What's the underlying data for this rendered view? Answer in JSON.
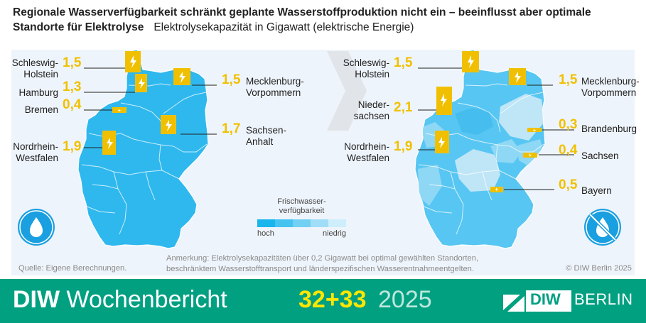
{
  "header": {
    "title": "Regionale Wasserverfügbarkeit schränkt geplante Wasserstoffproduktion nicht ein – beeinflusst aber optimale",
    "title_line2": "Standorte für Elektrolyse",
    "subtitle": "Elektrolysekapazität in Gigawatt (elektrische Energie)"
  },
  "chart_data": [
    {
      "type": "map",
      "unit": "Gigawatt",
      "icon": "water-drop-icon",
      "regions": [
        {
          "name": "Schleswig-\nHolstein",
          "value": "1,5"
        },
        {
          "name": "Hamburg",
          "value": "1,3"
        },
        {
          "name": "Bremen",
          "value": "0,4"
        },
        {
          "name": "Nordrhein-\nWestfalen",
          "value": "1,9"
        },
        {
          "name": "Mecklenburg-\nVorpommern",
          "value": "1,5"
        },
        {
          "name": "Sachsen-\nAnhalt",
          "value": "1,7"
        }
      ]
    },
    {
      "type": "map",
      "unit": "Gigawatt",
      "icon": "no-water-icon",
      "regions": [
        {
          "name": "Schleswig-\nHolstein",
          "value": "1,5"
        },
        {
          "name": "Nieder-\nsachsen",
          "value": "2,1"
        },
        {
          "name": "Nordrhein-\nWestfalen",
          "value": "1,9"
        },
        {
          "name": "Mecklenburg-\nVorpommern",
          "value": "1,5"
        },
        {
          "name": "Brandenburg",
          "value": "0,3"
        },
        {
          "name": "Sachsen",
          "value": "0,4"
        },
        {
          "name": "Bayern",
          "value": "0,5"
        }
      ]
    }
  ],
  "legend": {
    "title": "Frischwasser-\nverfügbarkeit",
    "low_label": "hoch",
    "high_label": "niedrig",
    "colors": [
      "#19b6ee",
      "#46c3f0",
      "#72d0f3",
      "#9fdef6",
      "#cdeefa"
    ]
  },
  "colors": {
    "accent": "#f0c000",
    "map_dark": "#29b9ef",
    "map_light": "#bfe6f7",
    "footer": "#00a081"
  },
  "note": "Anmerkung: Elektrolysekapazitäten über 0,2 Gigawatt bei optimal gewählten Standorten,\nbeschränktem Wasserstofftransport und länderspezifischen Wasserentnahmeentgelten.",
  "source": "Quelle: Eigene Berechnungen.",
  "copyright": "© DIW Berlin 2025",
  "footer": {
    "series_prefix": "DIW",
    "series_name": " Wochenbericht",
    "issue": "32+33",
    "year": "2025",
    "brand_short": "DIW",
    "brand_city": "BERLIN"
  }
}
